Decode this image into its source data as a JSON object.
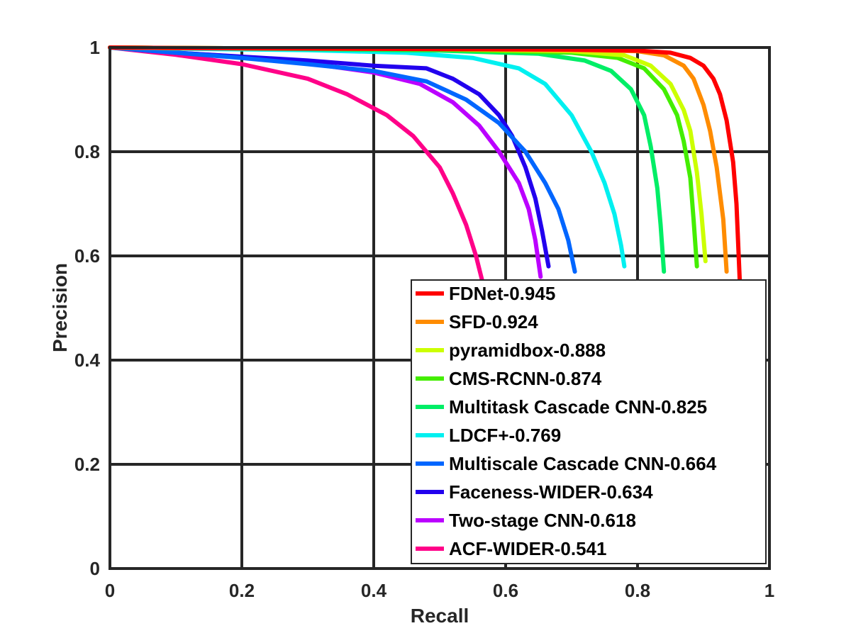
{
  "chart_data": {
    "type": "line",
    "title": "",
    "xlabel": "Recall",
    "ylabel": "Precision",
    "xlim": [
      0,
      1
    ],
    "ylim": [
      0,
      1
    ],
    "xticks": [
      "0",
      "0.2",
      "0.4",
      "0.6",
      "0.8",
      "1"
    ],
    "yticks": [
      "0",
      "0.2",
      "0.4",
      "0.6",
      "0.8",
      "1"
    ],
    "grid": true,
    "legend_position": "bottom-right",
    "series": [
      {
        "name": "FDNet-0.945",
        "color": "#ff0000",
        "x": [
          0,
          0.1,
          0.3,
          0.5,
          0.7,
          0.8,
          0.85,
          0.88,
          0.9,
          0.915,
          0.925,
          0.935,
          0.945,
          0.95,
          0.955
        ],
        "y": [
          1,
          0.999,
          0.998,
          0.997,
          0.996,
          0.994,
          0.99,
          0.98,
          0.965,
          0.94,
          0.91,
          0.86,
          0.78,
          0.7,
          0.55
        ]
      },
      {
        "name": "SFD-0.924",
        "color": "#ff8c00",
        "x": [
          0,
          0.1,
          0.3,
          0.5,
          0.7,
          0.8,
          0.84,
          0.87,
          0.885,
          0.9,
          0.91,
          0.92,
          0.93,
          0.935
        ],
        "y": [
          1,
          0.999,
          0.998,
          0.997,
          0.995,
          0.993,
          0.985,
          0.965,
          0.94,
          0.89,
          0.84,
          0.77,
          0.67,
          0.57
        ]
      },
      {
        "name": "pyramidbox-0.888",
        "color": "#ccff00",
        "x": [
          0,
          0.1,
          0.3,
          0.5,
          0.7,
          0.78,
          0.82,
          0.85,
          0.87,
          0.88,
          0.89,
          0.897,
          0.903
        ],
        "y": [
          1,
          0.999,
          0.998,
          0.997,
          0.993,
          0.985,
          0.965,
          0.93,
          0.88,
          0.84,
          0.76,
          0.68,
          0.59
        ]
      },
      {
        "name": "CMS-RCNN-0.874",
        "color": "#44ee00",
        "x": [
          0,
          0.1,
          0.3,
          0.5,
          0.7,
          0.77,
          0.81,
          0.84,
          0.86,
          0.87,
          0.88,
          0.885,
          0.89
        ],
        "y": [
          1,
          0.999,
          0.998,
          0.996,
          0.99,
          0.98,
          0.96,
          0.92,
          0.87,
          0.82,
          0.75,
          0.67,
          0.58
        ]
      },
      {
        "name": "Multitask Cascade CNN-0.825",
        "color": "#00ee66",
        "x": [
          0,
          0.1,
          0.3,
          0.5,
          0.65,
          0.72,
          0.76,
          0.79,
          0.81,
          0.82,
          0.83,
          0.835,
          0.84
        ],
        "y": [
          1,
          0.999,
          0.997,
          0.994,
          0.988,
          0.975,
          0.955,
          0.92,
          0.87,
          0.81,
          0.73,
          0.66,
          0.57
        ]
      },
      {
        "name": "LDCF+-0.769",
        "color": "#00f0f0",
        "x": [
          0,
          0.1,
          0.3,
          0.45,
          0.55,
          0.62,
          0.66,
          0.7,
          0.73,
          0.75,
          0.765,
          0.775,
          0.78
        ],
        "y": [
          1,
          0.998,
          0.995,
          0.99,
          0.98,
          0.96,
          0.93,
          0.87,
          0.8,
          0.74,
          0.68,
          0.62,
          0.58
        ]
      },
      {
        "name": "Multiscale Cascade CNN-0.664",
        "color": "#0066ff",
        "x": [
          0,
          0.1,
          0.2,
          0.3,
          0.4,
          0.48,
          0.54,
          0.59,
          0.63,
          0.66,
          0.68,
          0.695,
          0.705
        ],
        "y": [
          1,
          0.99,
          0.98,
          0.968,
          0.955,
          0.935,
          0.9,
          0.855,
          0.8,
          0.74,
          0.69,
          0.63,
          0.57
        ]
      },
      {
        "name": "Faceness-WIDER-0.634",
        "color": "#2200ee",
        "x": [
          0,
          0.1,
          0.3,
          0.4,
          0.48,
          0.52,
          0.56,
          0.59,
          0.61,
          0.63,
          0.645,
          0.655,
          0.665
        ],
        "y": [
          1,
          0.99,
          0.975,
          0.965,
          0.96,
          0.94,
          0.91,
          0.87,
          0.83,
          0.77,
          0.71,
          0.65,
          0.58
        ]
      },
      {
        "name": "Two-stage CNN-0.618",
        "color": "#bb00ff",
        "x": [
          0,
          0.1,
          0.2,
          0.3,
          0.4,
          0.47,
          0.52,
          0.56,
          0.59,
          0.62,
          0.635,
          0.645,
          0.653
        ],
        "y": [
          1,
          0.99,
          0.982,
          0.97,
          0.952,
          0.93,
          0.895,
          0.85,
          0.8,
          0.74,
          0.69,
          0.63,
          0.56
        ]
      },
      {
        "name": "ACF-WIDER-0.541",
        "color": "#ff0088",
        "x": [
          0,
          0.1,
          0.2,
          0.3,
          0.36,
          0.42,
          0.46,
          0.5,
          0.52,
          0.54,
          0.555,
          0.565
        ],
        "y": [
          1,
          0.986,
          0.968,
          0.94,
          0.91,
          0.87,
          0.83,
          0.77,
          0.72,
          0.66,
          0.6,
          0.55
        ]
      }
    ]
  }
}
